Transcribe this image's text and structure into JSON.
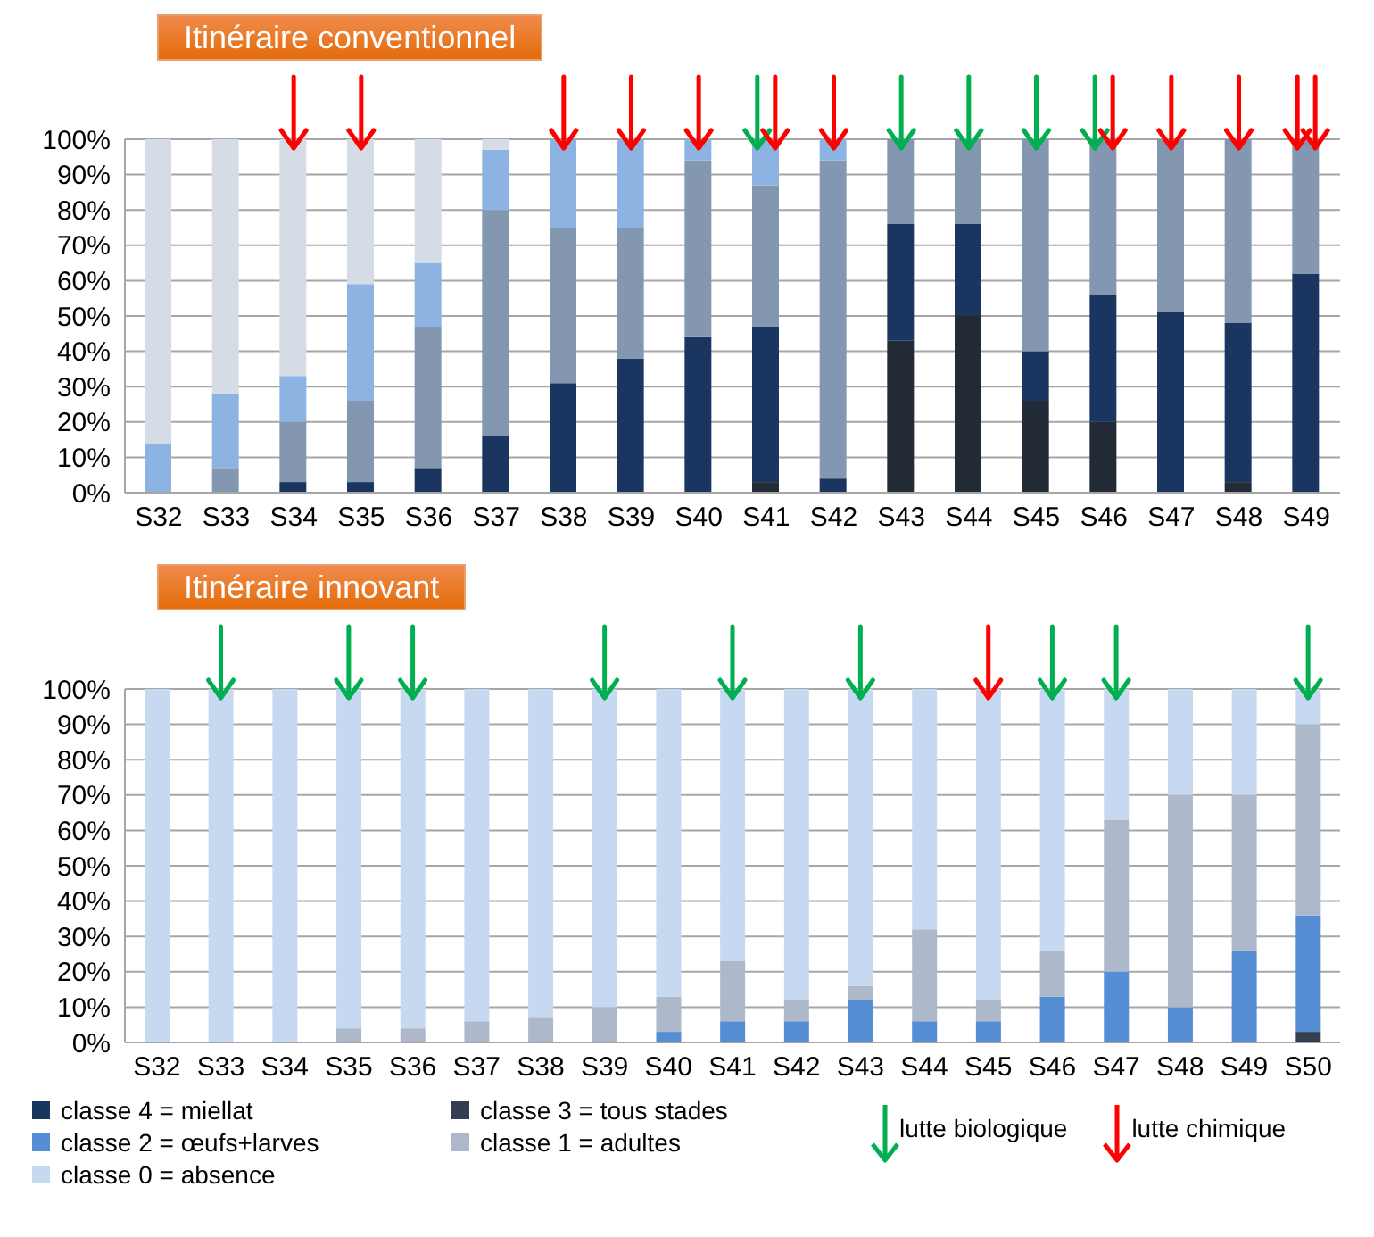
{
  "chart_data": [
    {
      "type": "bar",
      "title": "Itinéraire conventionnel",
      "stacked": true,
      "grid": "y",
      "ylim": [
        0,
        100
      ],
      "yticks": [
        {
          "value": 0,
          "label": "0%"
        },
        {
          "value": 10,
          "label": "10%"
        },
        {
          "value": 20,
          "label": "20%"
        },
        {
          "value": 30,
          "label": "30%"
        },
        {
          "value": 40,
          "label": "40%"
        },
        {
          "value": 50,
          "label": "50%"
        },
        {
          "value": 60,
          "label": "60%"
        },
        {
          "value": 70,
          "label": "70%"
        },
        {
          "value": 80,
          "label": "80%"
        },
        {
          "value": 90,
          "label": "90%"
        },
        {
          "value": 100,
          "label": "100%"
        }
      ],
      "categories": [
        "S32",
        "S33",
        "S34",
        "S35",
        "S36",
        "S37",
        "S38",
        "S39",
        "S40",
        "S41",
        "S42",
        "S43",
        "S44",
        "S45",
        "S46",
        "S47",
        "S48",
        "S49"
      ],
      "series": [
        {
          "color": "#222a35",
          "values": [
            0,
            0,
            0,
            0,
            0,
            0,
            0,
            0,
            0,
            3,
            0,
            43,
            50,
            26,
            20,
            0,
            3,
            0
          ]
        },
        {
          "color": "#1a3660",
          "values": [
            0,
            0,
            3,
            3,
            7,
            16,
            31,
            38,
            44,
            44,
            4,
            33,
            26,
            14,
            36,
            51,
            45,
            62
          ]
        },
        {
          "color": "#8497b0",
          "values": [
            0,
            7,
            17,
            23,
            40,
            64,
            44,
            37,
            50,
            40,
            90,
            24,
            24,
            60,
            44,
            49,
            52,
            38
          ]
        },
        {
          "color": "#8db3e2",
          "values": [
            14,
            21,
            13,
            33,
            18,
            17,
            25,
            25,
            6,
            13,
            6,
            0,
            0,
            0,
            0,
            0,
            0,
            0
          ]
        },
        {
          "color": "#d6dce5",
          "values": [
            86,
            72,
            67,
            41,
            35,
            3,
            0,
            0,
            0,
            0,
            0,
            0,
            0,
            0,
            0,
            0,
            0,
            0
          ]
        },
        {
          "type": "scatter",
          "color": "#00b050",
          "x": [
            "S41",
            "S43",
            "S44",
            "S45",
            "S46"
          ],
          "values": [
            100,
            100,
            100,
            100,
            100
          ]
        },
        {
          "type": "scatter",
          "color": "#ff0000",
          "x": [
            "S34",
            "S35",
            "S38",
            "S39",
            "S40",
            "S41",
            "S42",
            "S46",
            "S47",
            "S48",
            "S49",
            "S49"
          ],
          "values": [
            100,
            100,
            100,
            100,
            100,
            100,
            100,
            100,
            100,
            100,
            100,
            100
          ]
        }
      ]
    },
    {
      "type": "bar",
      "title": "Itinéraire innovant",
      "stacked": true,
      "grid": "y",
      "legend": "bottom",
      "ylim": [
        0,
        100
      ],
      "yticks": [
        {
          "value": 0,
          "label": "0%"
        },
        {
          "value": 10,
          "label": "10%"
        },
        {
          "value": 20,
          "label": "20%"
        },
        {
          "value": 30,
          "label": "30%"
        },
        {
          "value": 40,
          "label": "40%"
        },
        {
          "value": 50,
          "label": "50%"
        },
        {
          "value": 60,
          "label": "60%"
        },
        {
          "value": 70,
          "label": "70%"
        },
        {
          "value": 80,
          "label": "80%"
        },
        {
          "value": 90,
          "label": "90%"
        },
        {
          "value": 100,
          "label": "100%"
        }
      ],
      "categories": [
        "S32",
        "S33",
        "S34",
        "S35",
        "S36",
        "S37",
        "S38",
        "S39",
        "S40",
        "S41",
        "S42",
        "S43",
        "S44",
        "S45",
        "S46",
        "S47",
        "S48",
        "S49",
        "S50"
      ],
      "series": [
        {
          "name": "classe 4 = miellat",
          "color": "#17375e",
          "values": [
            0,
            0,
            0,
            0,
            0,
            0,
            0,
            0,
            0,
            0,
            0,
            0,
            0,
            0,
            0,
            0,
            0,
            0,
            0
          ]
        },
        {
          "name": "classe 3 = tous stades",
          "color": "#333f50",
          "values": [
            0,
            0,
            0,
            0,
            0,
            0,
            0,
            0,
            0,
            0,
            0,
            0,
            0,
            0,
            0,
            0,
            0,
            0,
            3
          ]
        },
        {
          "name": "classe 2 = œufs+larves",
          "color": "#558ed5",
          "values": [
            0,
            0,
            0,
            0,
            0,
            0,
            0,
            0,
            3,
            6,
            6,
            12,
            6,
            6,
            13,
            20,
            10,
            26,
            33
          ]
        },
        {
          "name": "classe 1 = adultes",
          "color": "#adb9ca",
          "values": [
            0,
            0,
            0,
            4,
            4,
            6,
            7,
            10,
            10,
            17,
            6,
            4,
            26,
            6,
            13,
            43,
            60,
            44,
            54
          ]
        },
        {
          "name": "classe 0 = absence",
          "color": "#c6d9f1",
          "values": [
            100,
            100,
            100,
            96,
            96,
            94,
            93,
            90,
            87,
            77,
            88,
            84,
            68,
            88,
            74,
            37,
            30,
            30,
            10
          ]
        },
        {
          "type": "scatter",
          "name": "lutte biologique",
          "color": "#00b050",
          "x": [
            "S33",
            "S35",
            "S36",
            "S39",
            "S41",
            "S43",
            "S46",
            "S47",
            "S50"
          ],
          "values": [
            100,
            100,
            100,
            100,
            100,
            100,
            100,
            100,
            100
          ]
        },
        {
          "type": "scatter",
          "name": "lutte chimique",
          "color": "#ff0000",
          "x": [
            "S45"
          ],
          "values": [
            100
          ]
        }
      ]
    }
  ]
}
